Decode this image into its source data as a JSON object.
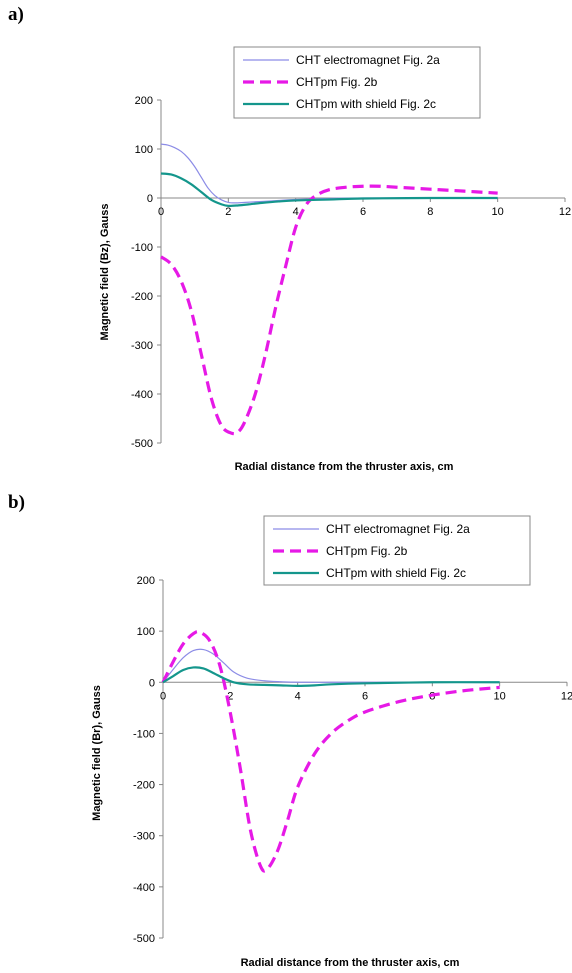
{
  "panels": [
    {
      "label": "a)"
    },
    {
      "label": "b)"
    }
  ],
  "chart_data": [
    {
      "type": "line",
      "title": "",
      "xlabel": "Radial distance from the thruster axis, cm",
      "ylabel": "Magnetic field (Bz), Gauss",
      "xlim": [
        0,
        12
      ],
      "ylim": [
        -500,
        200
      ],
      "xticks": [
        0,
        2,
        4,
        6,
        8,
        10,
        12
      ],
      "yticks": [
        200,
        100,
        0,
        -100,
        -200,
        -300,
        -400,
        -500
      ],
      "grid": false,
      "legend": "top",
      "series": [
        {
          "name": "CHT electromagnet Fig. 2a",
          "color": "#8c8ce6",
          "style": "solid",
          "width": 1.2,
          "x": [
            0,
            0.2,
            0.4,
            0.6,
            0.8,
            1.0,
            1.2,
            1.4,
            1.6,
            1.8,
            2.0,
            2.2,
            2.5,
            3.0,
            3.5,
            4.0,
            5.0,
            6.0,
            8.0,
            10.0
          ],
          "y": [
            110,
            108,
            103,
            95,
            82,
            64,
            42,
            20,
            5,
            -4,
            -9,
            -10,
            -9,
            -7,
            -5,
            -3,
            -1,
            0,
            0,
            0
          ]
        },
        {
          "name": "CHTpm  Fig. 2b",
          "color": "#e619e6",
          "style": "dashed",
          "width": 3.2,
          "x": [
            0,
            0.3,
            0.6,
            0.9,
            1.2,
            1.5,
            1.8,
            2.1,
            2.3,
            2.5,
            2.8,
            3.1,
            3.4,
            3.7,
            4.0,
            4.3,
            4.6,
            5.0,
            5.5,
            6.0,
            6.5,
            7.0,
            8.0,
            9.0,
            10.0
          ],
          "y": [
            -120,
            -135,
            -170,
            -230,
            -320,
            -410,
            -465,
            -480,
            -477,
            -455,
            -400,
            -320,
            -225,
            -140,
            -60,
            -15,
            5,
            17,
            22,
            24,
            24,
            22,
            18,
            14,
            10
          ]
        },
        {
          "name": "CHTpm with shield Fig. 2c",
          "color": "#14968c",
          "style": "solid",
          "width": 2.2,
          "x": [
            0,
            0.3,
            0.6,
            0.9,
            1.2,
            1.5,
            1.8,
            2.0,
            2.3,
            2.6,
            3.0,
            3.5,
            4.0,
            5.0,
            6.0,
            8.0,
            10.0
          ],
          "y": [
            50,
            48,
            40,
            28,
            12,
            -4,
            -13,
            -16,
            -15,
            -13,
            -10,
            -7,
            -5,
            -3,
            -1,
            0,
            0
          ]
        }
      ]
    },
    {
      "type": "line",
      "title": "",
      "xlabel": "Radial distance from the thruster axis, cm",
      "ylabel": "Magnetic field (Br), Gauss",
      "xlim": [
        0,
        12
      ],
      "ylim": [
        -500,
        200
      ],
      "xticks": [
        0,
        2,
        4,
        6,
        8,
        10,
        12
      ],
      "yticks": [
        200,
        100,
        0,
        -100,
        -200,
        -300,
        -400,
        -500
      ],
      "grid": false,
      "legend": "top-right",
      "series": [
        {
          "name": "CHT electromagnet Fig. 2a",
          "color": "#8c8ce6",
          "style": "solid",
          "width": 1.2,
          "x": [
            0,
            0.3,
            0.6,
            0.9,
            1.2,
            1.5,
            1.8,
            2.1,
            2.5,
            3.0,
            3.5,
            4.0,
            5.0,
            6.0,
            8.0,
            10.0
          ],
          "y": [
            0,
            25,
            48,
            62,
            64,
            55,
            38,
            20,
            8,
            3,
            1,
            0,
            0,
            0,
            0,
            0
          ]
        },
        {
          "name": "CHTpm Fig. 2b",
          "color": "#e619e6",
          "style": "dashed",
          "width": 3.2,
          "x": [
            0,
            0.3,
            0.6,
            0.9,
            1.1,
            1.4,
            1.7,
            2.0,
            2.3,
            2.6,
            2.9,
            3.1,
            3.4,
            3.7,
            4.0,
            4.5,
            5.0,
            5.5,
            6.0,
            7.0,
            8.0,
            9.0,
            10.0
          ],
          "y": [
            0,
            40,
            75,
            95,
            98,
            80,
            30,
            -60,
            -170,
            -290,
            -360,
            -365,
            -330,
            -270,
            -205,
            -140,
            -100,
            -75,
            -58,
            -38,
            -25,
            -16,
            -10
          ]
        },
        {
          "name": "CHTpm with shield Fig. 2c",
          "color": "#14968c",
          "style": "solid",
          "width": 2.2,
          "x": [
            0,
            0.3,
            0.6,
            0.9,
            1.2,
            1.5,
            1.8,
            2.1,
            2.5,
            3.0,
            3.5,
            4.0,
            4.5,
            5.0,
            6.0,
            8.0,
            10.0
          ],
          "y": [
            0,
            12,
            24,
            29,
            27,
            18,
            8,
            0,
            -4,
            -5,
            -6,
            -7,
            -6,
            -4,
            -2,
            0,
            0
          ]
        }
      ]
    }
  ]
}
